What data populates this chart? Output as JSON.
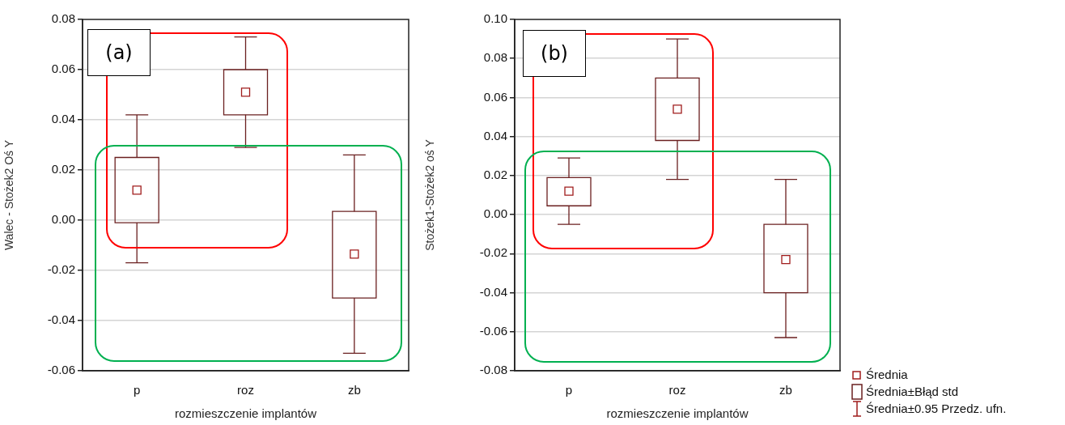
{
  "chart_data": [
    {
      "type": "box",
      "title": "(a)",
      "xlabel": "rozmieszczenie implantów",
      "ylabel": "Walec - Stożek2 Oś Y",
      "categories": [
        "p",
        "roz",
        "zb"
      ],
      "ylim": [
        -0.06,
        0.08
      ],
      "yticks": [
        {
          "value": -0.06,
          "label": "-0.06"
        },
        {
          "value": -0.04,
          "label": "-0.04"
        },
        {
          "value": -0.02,
          "label": "-0.02"
        },
        {
          "value": 0,
          "label": "0.00"
        },
        {
          "value": 0.02,
          "label": "0.02"
        },
        {
          "value": 0.04,
          "label": "0.04"
        },
        {
          "value": 0.06,
          "label": "0.06"
        },
        {
          "value": 0.08,
          "label": "0.08"
        }
      ],
      "grid": "y",
      "marker": "square",
      "series": [
        {
          "color": "#6b2020",
          "boxes": [
            {
              "low": -0.017,
              "q1": -0.001,
              "median": 0.012,
              "q3": 0.025,
              "high": 0.042
            },
            {
              "low": 0.029,
              "q1": 0.042,
              "median": 0.051,
              "q3": 0.06,
              "high": 0.073
            },
            {
              "low": -0.053,
              "q1": -0.031,
              "median": -0.0135,
              "q3": 0.0035,
              "high": 0.026
            }
          ]
        }
      ]
    },
    {
      "type": "box",
      "title": "(b)",
      "xlabel": "rozmieszczenie implantów",
      "ylabel": "Stożek1-Stożek2 oś Y",
      "categories": [
        "p",
        "roz",
        "zb"
      ],
      "ylim": [
        -0.08,
        0.1
      ],
      "yticks": [
        {
          "value": -0.08,
          "label": "-0.08"
        },
        {
          "value": -0.06,
          "label": "-0.06"
        },
        {
          "value": -0.04,
          "label": "-0.04"
        },
        {
          "value": -0.02,
          "label": "-0.02"
        },
        {
          "value": 0,
          "label": "0.00"
        },
        {
          "value": 0.02,
          "label": "0.02"
        },
        {
          "value": 0.04,
          "label": "0.04"
        },
        {
          "value": 0.06,
          "label": "0.06"
        },
        {
          "value": 0.08,
          "label": "0.08"
        },
        {
          "value": 0.1,
          "label": "0.10"
        }
      ],
      "grid": "y",
      "marker": "square",
      "series": [
        {
          "color": "#6b2020",
          "boxes": [
            {
              "low": -0.005,
              "q1": 0.0045,
              "median": 0.012,
              "q3": 0.019,
              "high": 0.029
            },
            {
              "low": 0.018,
              "q1": 0.038,
              "median": 0.054,
              "q3": 0.07,
              "high": 0.09
            },
            {
              "low": -0.063,
              "q1": -0.04,
              "median": -0.023,
              "q3": -0.005,
              "high": 0.018
            }
          ]
        }
      ],
      "annotations": [
        "Średnia",
        "Średnia±Błąd std",
        "Średnia±0.95 Przedz. ufn."
      ]
    }
  ]
}
